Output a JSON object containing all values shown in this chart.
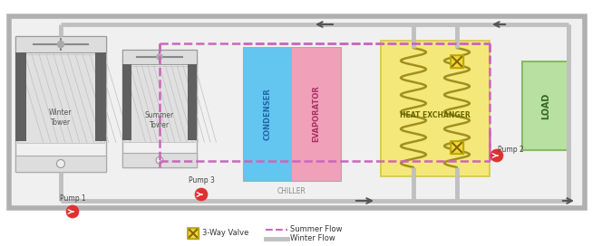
{
  "bg_color": "#ffffff",
  "frame_color": "#b0b0b0",
  "frame_fill": "#f0f0f0",
  "condenser_color": "#62c6f0",
  "evaporator_color": "#f0a0b8",
  "chiller_label": "CHILLER",
  "heat_exchanger_color": "#f5e87a",
  "hx_border_color": "#d4c840",
  "load_color": "#b8e0a0",
  "load_border_color": "#88bb66",
  "summer_flow_color": "#cc66bb",
  "winter_flow_color": "#c0c0c0",
  "pipe_lw": 3.5,
  "summer_lw": 1.8,
  "pump_fill": "#e03030",
  "pump_edge": "#cc2222",
  "valve_fill": "#f0d840",
  "valve_edge": "#c0a000",
  "tower_fill": "#e8e8e8",
  "tower_edge": "#aaaaaa",
  "tower_grid": "#c8c8c8",
  "tower_dark": "#707070",
  "legend_valve_label": "3-Way Valve",
  "legend_summer_label": "Summer Flow",
  "legend_winter_label": "Winter Flow",
  "coil_color": "#a09020",
  "coil_lw": 1.8
}
